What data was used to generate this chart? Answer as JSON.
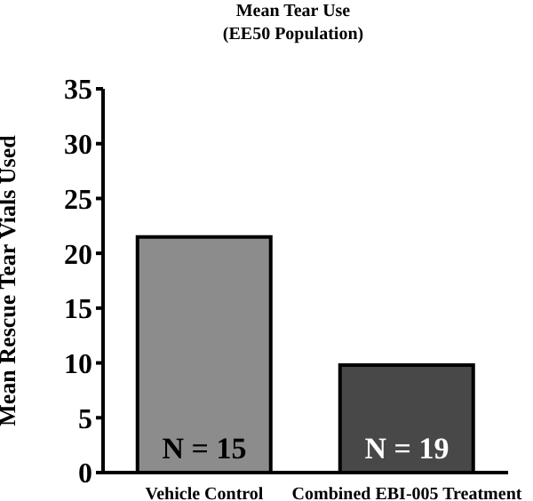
{
  "chart_data": {
    "type": "bar",
    "title": "Mean Tear Use",
    "subtitle": "(EE50 Population)",
    "ylabel": "Mean Rescue Tear Vials Used",
    "categories": [
      "Vehicle Control",
      "Combined EBI-005 Treatment"
    ],
    "values": [
      21.5,
      9.8
    ],
    "colors": [
      "#8c8c8c",
      "#484848"
    ],
    "ylim": [
      0,
      35
    ],
    "yticks": [
      0,
      5,
      10,
      15,
      20,
      25,
      30,
      35
    ],
    "grid": false,
    "legend": false,
    "annotations": [
      "N = 15",
      "N = 19"
    ]
  }
}
